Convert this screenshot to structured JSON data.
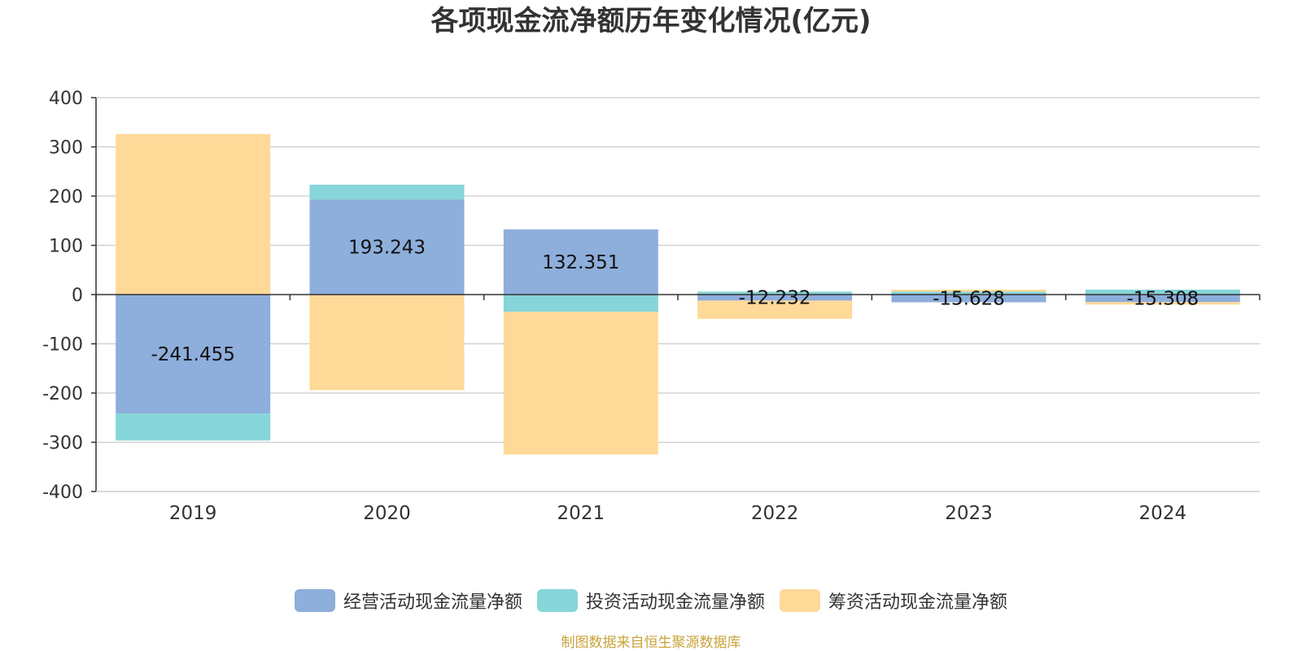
{
  "chart_data": {
    "type": "bar",
    "stacked": true,
    "title": "各项现金流净额历年变化情况(亿元)",
    "categories": [
      "2019",
      "2020",
      "2021",
      "2022",
      "2023",
      "2024"
    ],
    "ylim": [
      -400,
      400
    ],
    "yticks": [
      "400",
      "300",
      "200",
      "100",
      "0",
      "-100",
      "-200",
      "-300",
      "-400"
    ],
    "grid": true,
    "legend_position": "bottom",
    "series": [
      {
        "name": "经营活动现金流量净额",
        "color": "#8eaedb",
        "values": [
          -241.455,
          193.243,
          132.351,
          -12.232,
          -15.628,
          -15.308
        ]
      },
      {
        "name": "投资活动现金流量净额",
        "color": "#86d5d8",
        "values": [
          -55,
          30,
          -35,
          6,
          6,
          10
        ]
      },
      {
        "name": "筹资活动现金流量净额",
        "color": "#fed998",
        "values": [
          326,
          -194,
          -290,
          -37,
          4,
          -5
        ]
      }
    ],
    "data_labels": [
      "-241.455",
      "193.243",
      "132.351",
      "-12.232",
      "-15.628",
      "-15.308"
    ]
  },
  "source": {
    "text": "制图数据来自恒生聚源数据库",
    "color": "#c9a33a"
  }
}
